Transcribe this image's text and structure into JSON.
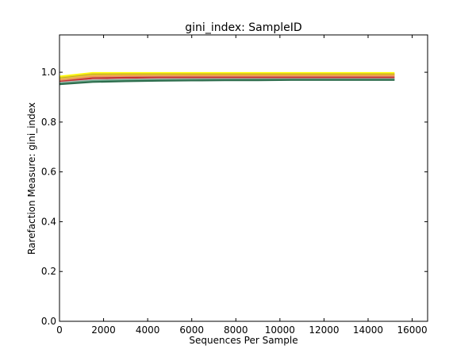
{
  "chart_data": {
    "type": "line",
    "title": "gini_index: SampleID",
    "xlabel": "Sequences Per Sample",
    "ylabel": "Rarefaction Measure: gini_index",
    "xlim": [
      0,
      16700
    ],
    "ylim": [
      0.0,
      1.15
    ],
    "xticks": [
      0,
      2000,
      4000,
      6000,
      8000,
      10000,
      12000,
      14000,
      16000
    ],
    "xtick_labels": [
      "0",
      "2000",
      "4000",
      "6000",
      "8000",
      "10000",
      "12000",
      "14000",
      "16000"
    ],
    "yticks": [
      0.0,
      0.2,
      0.4,
      0.6,
      0.8,
      1.0
    ],
    "ytick_labels": [
      "0.0",
      "0.2",
      "0.4",
      "0.6",
      "0.8",
      "1.0"
    ],
    "grid": false,
    "legend": "none",
    "x": [
      10,
      1500,
      3000,
      4500,
      6000,
      7500,
      9000,
      10500,
      12000,
      13500,
      15200
    ],
    "series": [
      {
        "color": "#ffff00",
        "values": [
          0.983,
          0.997,
          0.997,
          0.997,
          0.997,
          0.997,
          0.997,
          0.997,
          0.997,
          0.997,
          0.997
        ]
      },
      {
        "color": "#e6d23c",
        "values": [
          0.978,
          0.993,
          0.993,
          0.993,
          0.993,
          0.993,
          0.993,
          0.993,
          0.993,
          0.993,
          0.993
        ]
      },
      {
        "color": "#c8b400",
        "values": [
          0.975,
          0.99,
          0.991,
          0.991,
          0.991,
          0.991,
          0.991,
          0.991,
          0.991,
          0.991,
          0.991
        ]
      },
      {
        "color": "#e0c060",
        "values": [
          0.972,
          0.987,
          0.988,
          0.988,
          0.988,
          0.988,
          0.988,
          0.988,
          0.988,
          0.988,
          0.988
        ]
      },
      {
        "color": "#ff9a3c",
        "values": [
          0.968,
          0.983,
          0.985,
          0.985,
          0.986,
          0.986,
          0.986,
          0.986,
          0.986,
          0.986,
          0.986
        ]
      },
      {
        "color": "#d2a07a",
        "values": [
          0.965,
          0.979,
          0.981,
          0.982,
          0.982,
          0.982,
          0.982,
          0.982,
          0.982,
          0.982,
          0.982
        ]
      },
      {
        "color": "#c83232",
        "values": [
          0.962,
          0.976,
          0.978,
          0.979,
          0.979,
          0.979,
          0.979,
          0.979,
          0.979,
          0.979,
          0.979
        ]
      },
      {
        "color": "#b4b4b4",
        "values": [
          0.958,
          0.969,
          0.971,
          0.972,
          0.973,
          0.973,
          0.973,
          0.973,
          0.973,
          0.973,
          0.973
        ]
      },
      {
        "color": "#6aa88a",
        "values": [
          0.955,
          0.965,
          0.968,
          0.969,
          0.97,
          0.97,
          0.971,
          0.971,
          0.971,
          0.971,
          0.971
        ]
      },
      {
        "color": "#2e6e4e",
        "values": [
          0.952,
          0.961,
          0.964,
          0.966,
          0.967,
          0.968,
          0.968,
          0.969,
          0.969,
          0.969,
          0.969
        ]
      }
    ]
  }
}
